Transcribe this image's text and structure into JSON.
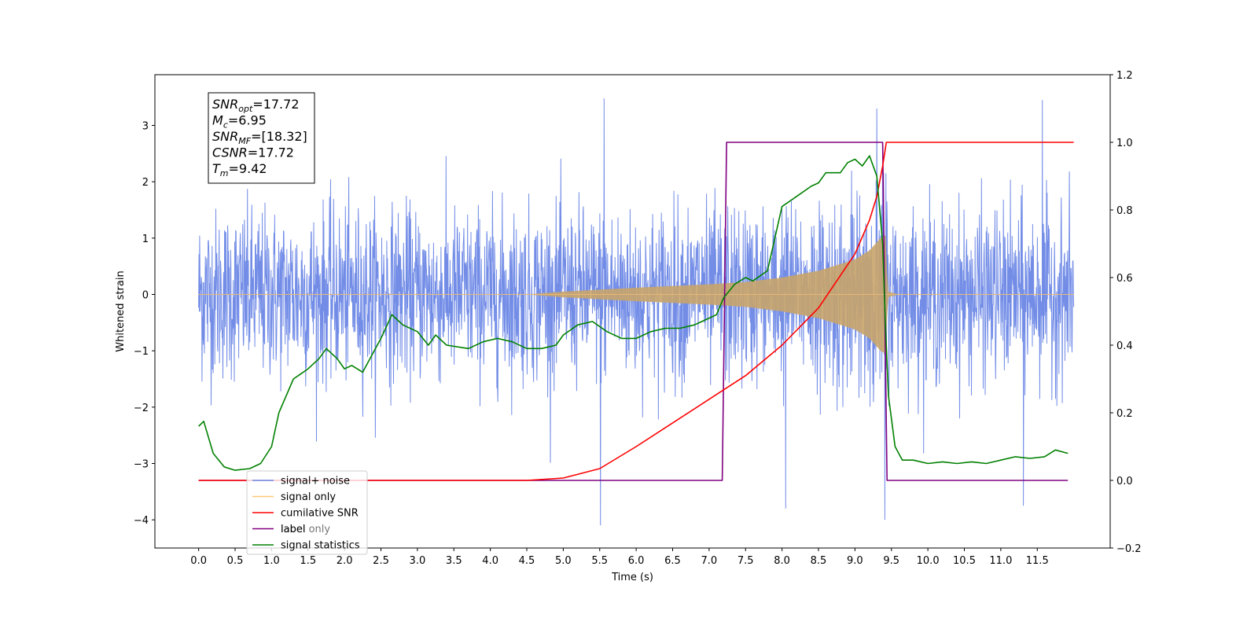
{
  "chart_data": {
    "type": "line",
    "title": "",
    "xlabel": "Time (s)",
    "ylabel": "Whitened strain",
    "y2label": "",
    "xlim": [
      -0.6,
      12.5
    ],
    "ylim": [
      -4.5,
      3.9
    ],
    "y2lim": [
      -0.2,
      1.2
    ],
    "xticks": [
      0.0,
      0.5,
      1.0,
      1.5,
      2.0,
      2.5,
      3.0,
      3.5,
      4.0,
      4.5,
      5.0,
      5.5,
      6.0,
      6.5,
      7.0,
      7.5,
      8.0,
      8.5,
      9.0,
      9.5,
      10.0,
      10.5,
      11.0,
      11.5
    ],
    "xtick_labels": [
      "0.0",
      "0.5",
      "1.0",
      "1.5",
      "2.0",
      "2.5",
      "3.0",
      "3.5",
      "4.0",
      "4.5",
      "5.0",
      "5.5",
      "6.0",
      "6.5",
      "7.0",
      "7.5",
      "8.0",
      "8.5",
      "9.0",
      "9.5",
      "10.0",
      "10.5",
      "11.0",
      "11.5"
    ],
    "yticks": [
      3,
      2,
      1,
      0,
      -1,
      -2,
      -3,
      -4
    ],
    "ytick_labels": [
      "3",
      "2",
      "1",
      "0",
      "−1",
      "−2",
      "−3",
      "−4"
    ],
    "y2ticks": [
      1.2,
      1.0,
      0.8,
      0.6,
      0.4,
      0.2,
      0.0,
      -0.2
    ],
    "y2tick_labels": [
      "1.2",
      "1.0",
      "0.8",
      "0.6",
      "0.4",
      "0.2",
      "0.0",
      "−0.2"
    ],
    "grid": false,
    "legend_position": "lower-left",
    "series": [
      {
        "name": "signal+ noise",
        "axis": "left",
        "color": "#6b87e6",
        "kind": "noisy strain",
        "x_range": [
          0.0,
          12.0
        ],
        "noise_band": [
          -2.0,
          2.3
        ],
        "notable_peaks": [
          [
            5.56,
            3.48
          ],
          [
            11.57,
            3.45
          ],
          [
            9.3,
            3.3
          ],
          [
            5.51,
            -4.1
          ],
          [
            8.05,
            -3.8
          ],
          [
            9.41,
            -4.0
          ],
          [
            11.31,
            -3.75
          ]
        ]
      },
      {
        "name": "signal only",
        "axis": "left",
        "color": "#c8a46a",
        "kind": "chirp",
        "envelope": [
          [
            0.0,
            0.0
          ],
          [
            4.5,
            0.0
          ],
          [
            5.0,
            0.05
          ],
          [
            6.0,
            0.12
          ],
          [
            7.0,
            0.18
          ],
          [
            7.5,
            0.22
          ],
          [
            8.0,
            0.3
          ],
          [
            8.5,
            0.42
          ],
          [
            9.0,
            0.62
          ],
          [
            9.2,
            0.78
          ],
          [
            9.35,
            1.0
          ],
          [
            9.42,
            1.05
          ],
          [
            9.45,
            0.05
          ],
          [
            9.6,
            0.0
          ],
          [
            12.0,
            0.0
          ]
        ]
      },
      {
        "name": "cumilative SNR",
        "axis": "right",
        "color": "#ff0000",
        "x": [
          0.0,
          4.5,
          5.0,
          5.5,
          6.0,
          6.5,
          7.0,
          7.5,
          8.0,
          8.5,
          9.0,
          9.2,
          9.3,
          9.38,
          9.43,
          12.0
        ],
        "values": [
          0.0,
          0.0,
          0.007,
          0.035,
          0.1,
          0.17,
          0.24,
          0.31,
          0.4,
          0.51,
          0.67,
          0.77,
          0.84,
          0.93,
          1.0,
          1.0
        ]
      },
      {
        "name": "label",
        "axis": "right",
        "color": "#800080",
        "x": [
          0.0,
          7.18,
          7.24,
          9.38,
          9.44,
          11.92
        ],
        "values": [
          0.0,
          0.0,
          1.0,
          1.0,
          0.0,
          0.0
        ]
      },
      {
        "name": "signal statistics",
        "axis": "right",
        "color": "#008000",
        "x": [
          0.0,
          0.07,
          0.2,
          0.35,
          0.5,
          0.7,
          0.85,
          1.0,
          1.1,
          1.3,
          1.5,
          1.65,
          1.75,
          1.9,
          2.0,
          2.1,
          2.25,
          2.4,
          2.5,
          2.65,
          2.8,
          3.0,
          3.15,
          3.25,
          3.4,
          3.7,
          3.9,
          4.1,
          4.3,
          4.5,
          4.7,
          4.9,
          5.0,
          5.2,
          5.4,
          5.6,
          5.8,
          6.0,
          6.2,
          6.4,
          6.6,
          6.8,
          7.0,
          7.1,
          7.2,
          7.35,
          7.5,
          7.6,
          7.8,
          8.0,
          8.2,
          8.4,
          8.5,
          8.6,
          8.8,
          8.9,
          9.0,
          9.1,
          9.2,
          9.3,
          9.38,
          9.42,
          9.46,
          9.55,
          9.65,
          9.8,
          10.0,
          10.2,
          10.4,
          10.6,
          10.8,
          11.0,
          11.2,
          11.4,
          11.6,
          11.75,
          11.92
        ],
        "values": [
          0.16,
          0.175,
          0.08,
          0.04,
          0.03,
          0.035,
          0.05,
          0.1,
          0.2,
          0.3,
          0.33,
          0.36,
          0.39,
          0.36,
          0.33,
          0.34,
          0.32,
          0.38,
          0.42,
          0.49,
          0.46,
          0.44,
          0.4,
          0.43,
          0.4,
          0.39,
          0.41,
          0.42,
          0.41,
          0.39,
          0.39,
          0.4,
          0.43,
          0.46,
          0.47,
          0.44,
          0.42,
          0.42,
          0.44,
          0.45,
          0.45,
          0.46,
          0.48,
          0.49,
          0.54,
          0.58,
          0.6,
          0.59,
          0.62,
          0.81,
          0.84,
          0.87,
          0.88,
          0.91,
          0.91,
          0.94,
          0.95,
          0.93,
          0.96,
          0.9,
          0.7,
          0.45,
          0.25,
          0.1,
          0.06,
          0.06,
          0.05,
          0.055,
          0.05,
          0.055,
          0.05,
          0.06,
          0.07,
          0.065,
          0.07,
          0.09,
          0.08
        ]
      }
    ],
    "legend": [
      {
        "label": "signal+ noise",
        "color": "#6b87e6"
      },
      {
        "label": "signal only",
        "color": "#ffc878"
      },
      {
        "label": "cumilative SNR",
        "color": "#ff0000"
      },
      {
        "label": "label",
        "color": "#800080"
      },
      {
        "label": "signal statistics",
        "color": "#008000"
      }
    ],
    "legend_ghost_text": "label only",
    "annotation_lines": [
      {
        "sym": "SNR",
        "sub": "opt",
        "val": "=17.72"
      },
      {
        "sym": "M",
        "sub": "c",
        "val": "=6.95"
      },
      {
        "sym": "SNR",
        "sub": "MF",
        "val": "=[18.32]"
      },
      {
        "sym": "CSNR",
        "sub": "",
        "val": "=17.72"
      },
      {
        "sym": "T",
        "sub": "m",
        "val": "=9.42"
      }
    ]
  }
}
